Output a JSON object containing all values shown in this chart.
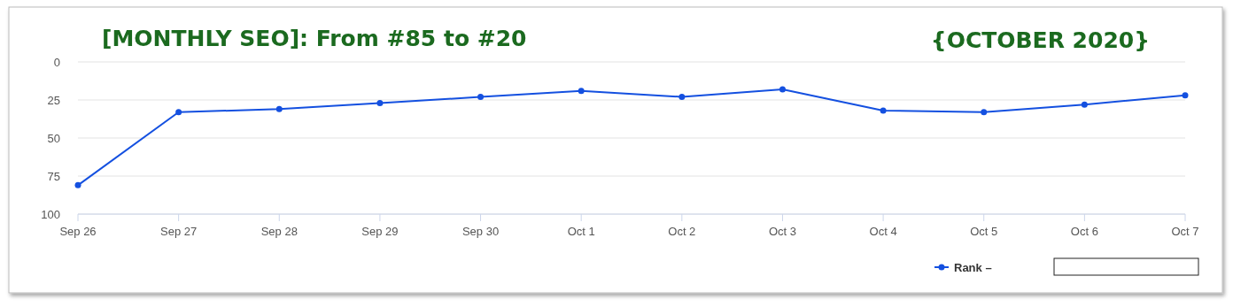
{
  "chart_data": {
    "type": "line",
    "title": "[MONTHLY SEO]: From #85 to #20",
    "subtitle": "{OCTOBER 2020}",
    "categories": [
      "Sep 26",
      "Sep 27",
      "Sep 28",
      "Sep 29",
      "Sep 30",
      "Oct 1",
      "Oct 2",
      "Oct 3",
      "Oct 4",
      "Oct 5",
      "Oct 6",
      "Oct 7"
    ],
    "series": [
      {
        "name": "Rank –",
        "color": "#1450e0",
        "values": [
          81,
          33,
          31,
          27,
          23,
          19,
          23,
          18,
          32,
          33,
          28,
          22
        ]
      }
    ],
    "ylim": [
      100,
      0
    ],
    "yticks": [
      0,
      25,
      50,
      75,
      100
    ],
    "grid": "y",
    "legend": "bottom right",
    "marker": "circle",
    "line_style": "solid"
  }
}
